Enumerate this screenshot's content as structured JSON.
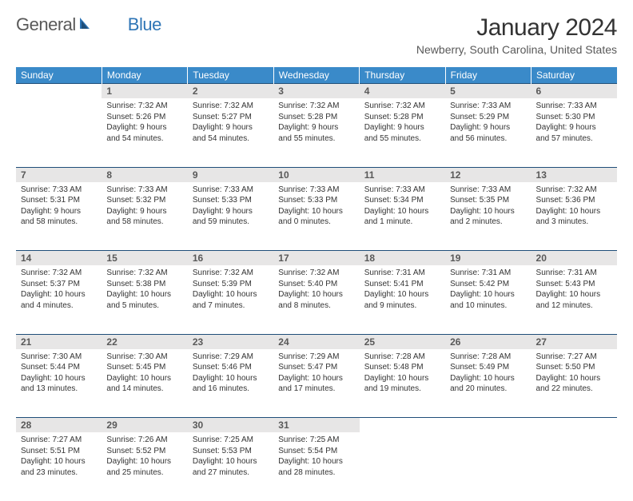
{
  "logo": {
    "part1": "General",
    "part2": "Blue"
  },
  "title": "January 2024",
  "location": "Newberry, South Carolina, United States",
  "colors": {
    "header_bg": "#3a8ac9",
    "header_fg": "#ffffff",
    "daynum_bg": "#e7e6e6",
    "daynum_fg": "#595959",
    "row_border": "#1f4e79",
    "text": "#333333",
    "logo_gray": "#595959",
    "logo_blue": "#2e75b6"
  },
  "weekdays": [
    "Sunday",
    "Monday",
    "Tuesday",
    "Wednesday",
    "Thursday",
    "Friday",
    "Saturday"
  ],
  "weeks": [
    {
      "nums": [
        "",
        "1",
        "2",
        "3",
        "4",
        "5",
        "6"
      ],
      "cells": [
        [],
        [
          "Sunrise: 7:32 AM",
          "Sunset: 5:26 PM",
          "Daylight: 9 hours",
          "and 54 minutes."
        ],
        [
          "Sunrise: 7:32 AM",
          "Sunset: 5:27 PM",
          "Daylight: 9 hours",
          "and 54 minutes."
        ],
        [
          "Sunrise: 7:32 AM",
          "Sunset: 5:28 PM",
          "Daylight: 9 hours",
          "and 55 minutes."
        ],
        [
          "Sunrise: 7:32 AM",
          "Sunset: 5:28 PM",
          "Daylight: 9 hours",
          "and 55 minutes."
        ],
        [
          "Sunrise: 7:33 AM",
          "Sunset: 5:29 PM",
          "Daylight: 9 hours",
          "and 56 minutes."
        ],
        [
          "Sunrise: 7:33 AM",
          "Sunset: 5:30 PM",
          "Daylight: 9 hours",
          "and 57 minutes."
        ]
      ]
    },
    {
      "nums": [
        "7",
        "8",
        "9",
        "10",
        "11",
        "12",
        "13"
      ],
      "cells": [
        [
          "Sunrise: 7:33 AM",
          "Sunset: 5:31 PM",
          "Daylight: 9 hours",
          "and 58 minutes."
        ],
        [
          "Sunrise: 7:33 AM",
          "Sunset: 5:32 PM",
          "Daylight: 9 hours",
          "and 58 minutes."
        ],
        [
          "Sunrise: 7:33 AM",
          "Sunset: 5:33 PM",
          "Daylight: 9 hours",
          "and 59 minutes."
        ],
        [
          "Sunrise: 7:33 AM",
          "Sunset: 5:33 PM",
          "Daylight: 10 hours",
          "and 0 minutes."
        ],
        [
          "Sunrise: 7:33 AM",
          "Sunset: 5:34 PM",
          "Daylight: 10 hours",
          "and 1 minute."
        ],
        [
          "Sunrise: 7:33 AM",
          "Sunset: 5:35 PM",
          "Daylight: 10 hours",
          "and 2 minutes."
        ],
        [
          "Sunrise: 7:32 AM",
          "Sunset: 5:36 PM",
          "Daylight: 10 hours",
          "and 3 minutes."
        ]
      ]
    },
    {
      "nums": [
        "14",
        "15",
        "16",
        "17",
        "18",
        "19",
        "20"
      ],
      "cells": [
        [
          "Sunrise: 7:32 AM",
          "Sunset: 5:37 PM",
          "Daylight: 10 hours",
          "and 4 minutes."
        ],
        [
          "Sunrise: 7:32 AM",
          "Sunset: 5:38 PM",
          "Daylight: 10 hours",
          "and 5 minutes."
        ],
        [
          "Sunrise: 7:32 AM",
          "Sunset: 5:39 PM",
          "Daylight: 10 hours",
          "and 7 minutes."
        ],
        [
          "Sunrise: 7:32 AM",
          "Sunset: 5:40 PM",
          "Daylight: 10 hours",
          "and 8 minutes."
        ],
        [
          "Sunrise: 7:31 AM",
          "Sunset: 5:41 PM",
          "Daylight: 10 hours",
          "and 9 minutes."
        ],
        [
          "Sunrise: 7:31 AM",
          "Sunset: 5:42 PM",
          "Daylight: 10 hours",
          "and 10 minutes."
        ],
        [
          "Sunrise: 7:31 AM",
          "Sunset: 5:43 PM",
          "Daylight: 10 hours",
          "and 12 minutes."
        ]
      ]
    },
    {
      "nums": [
        "21",
        "22",
        "23",
        "24",
        "25",
        "26",
        "27"
      ],
      "cells": [
        [
          "Sunrise: 7:30 AM",
          "Sunset: 5:44 PM",
          "Daylight: 10 hours",
          "and 13 minutes."
        ],
        [
          "Sunrise: 7:30 AM",
          "Sunset: 5:45 PM",
          "Daylight: 10 hours",
          "and 14 minutes."
        ],
        [
          "Sunrise: 7:29 AM",
          "Sunset: 5:46 PM",
          "Daylight: 10 hours",
          "and 16 minutes."
        ],
        [
          "Sunrise: 7:29 AM",
          "Sunset: 5:47 PM",
          "Daylight: 10 hours",
          "and 17 minutes."
        ],
        [
          "Sunrise: 7:28 AM",
          "Sunset: 5:48 PM",
          "Daylight: 10 hours",
          "and 19 minutes."
        ],
        [
          "Sunrise: 7:28 AM",
          "Sunset: 5:49 PM",
          "Daylight: 10 hours",
          "and 20 minutes."
        ],
        [
          "Sunrise: 7:27 AM",
          "Sunset: 5:50 PM",
          "Daylight: 10 hours",
          "and 22 minutes."
        ]
      ]
    },
    {
      "nums": [
        "28",
        "29",
        "30",
        "31",
        "",
        "",
        ""
      ],
      "cells": [
        [
          "Sunrise: 7:27 AM",
          "Sunset: 5:51 PM",
          "Daylight: 10 hours",
          "and 23 minutes."
        ],
        [
          "Sunrise: 7:26 AM",
          "Sunset: 5:52 PM",
          "Daylight: 10 hours",
          "and 25 minutes."
        ],
        [
          "Sunrise: 7:25 AM",
          "Sunset: 5:53 PM",
          "Daylight: 10 hours",
          "and 27 minutes."
        ],
        [
          "Sunrise: 7:25 AM",
          "Sunset: 5:54 PM",
          "Daylight: 10 hours",
          "and 28 minutes."
        ],
        [],
        [],
        []
      ]
    }
  ]
}
